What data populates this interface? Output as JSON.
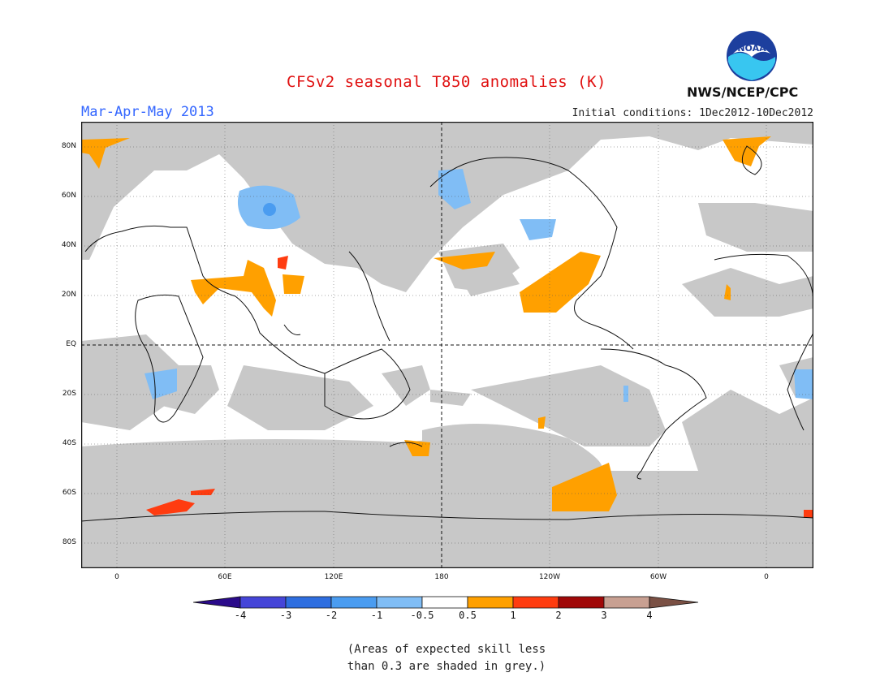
{
  "title": "CFSv2 seasonal T850 anomalies (K)",
  "season": "Mar-Apr-May 2013",
  "initial_conditions": "Initial conditions: 1Dec2012-10Dec2012",
  "agency": "NWS/NCEP/CPC",
  "logo_text": "NOAA",
  "lat_labels": [
    "80N",
    "60N",
    "40N",
    "20N",
    "EQ",
    "20S",
    "40S",
    "60S",
    "80S"
  ],
  "lon_labels": [
    "0",
    "60E",
    "120E",
    "180",
    "120W",
    "60W",
    "0"
  ],
  "colorbar": {
    "labels": [
      "-4",
      "-3",
      "-2",
      "-1",
      "-0.5",
      "0.5",
      "1",
      "2",
      "3",
      "4"
    ],
    "colors": [
      "#2a0a8a",
      "#4545d8",
      "#2e6ee0",
      "#4a9cf0",
      "#80bdf5",
      "#ffffff",
      "#ffa000",
      "#ff3c10",
      "#a00808",
      "#c8a092",
      "#7a5044"
    ]
  },
  "colors": {
    "skill_grey": "#c8c8c8",
    "warm_1": "#ffa000",
    "warm_2": "#ff3c10",
    "cool_1": "#80bdf5",
    "cool_2": "#4a9cf0"
  },
  "note": [
    "(Areas of expected skill less",
    "than 0.3 are shaded in grey.)"
  ]
}
